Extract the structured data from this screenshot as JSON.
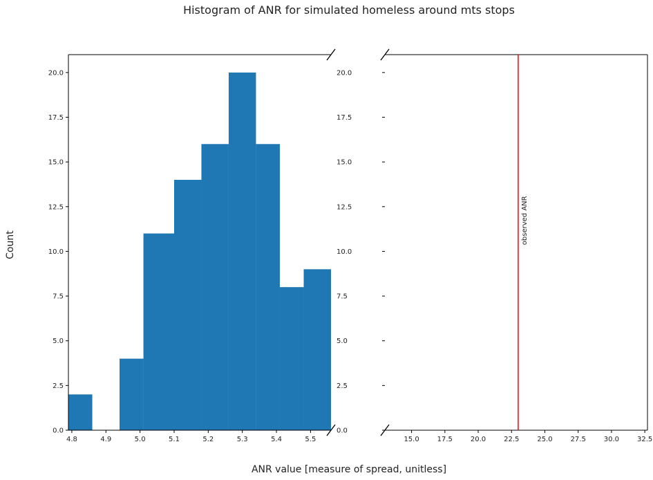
{
  "chart_data": {
    "type": "bar",
    "title": "Histogram of ANR for simulated homeless around mts stops",
    "xlabel": "ANR value [measure of spread, unitless]",
    "ylabel": "Count",
    "bar_color": "#1f77b4",
    "line_color": "#ff0000",
    "grid": false,
    "broken_x_axis": true,
    "left_panel": {
      "xlim": [
        4.79,
        5.56
      ],
      "ylim": [
        0,
        21
      ],
      "xticks": [
        "4.8",
        "4.9",
        "5.0",
        "5.1",
        "5.2",
        "5.3",
        "5.4",
        "5.5"
      ],
      "yticks": [
        "0.0",
        "2.5",
        "5.0",
        "7.5",
        "10.0",
        "12.5",
        "15.0",
        "17.5",
        "20.0"
      ],
      "bins": [
        {
          "x0": 4.79,
          "x1": 4.86,
          "count": 2
        },
        {
          "x0": 4.86,
          "x1": 4.94,
          "count": 0
        },
        {
          "x0": 4.94,
          "x1": 5.01,
          "count": 4
        },
        {
          "x0": 5.01,
          "x1": 5.1,
          "count": 11
        },
        {
          "x0": 5.1,
          "x1": 5.18,
          "count": 14
        },
        {
          "x0": 5.18,
          "x1": 5.26,
          "count": 16
        },
        {
          "x0": 5.26,
          "x1": 5.34,
          "count": 20
        },
        {
          "x0": 5.34,
          "x1": 5.41,
          "count": 16
        },
        {
          "x0": 5.41,
          "x1": 5.48,
          "count": 8
        },
        {
          "x0": 5.48,
          "x1": 5.56,
          "count": 9
        }
      ]
    },
    "right_panel": {
      "xlim": [
        13.0,
        32.7
      ],
      "ylim": [
        0,
        21
      ],
      "xticks": [
        "15.0",
        "17.5",
        "20.0",
        "22.5",
        "25.0",
        "27.5",
        "30.0",
        "32.5"
      ],
      "yticks": [
        "0.0",
        "2.5",
        "5.0",
        "7.5",
        "10.0",
        "12.5",
        "15.0",
        "17.5",
        "20.0"
      ],
      "observed_anr": 23.0,
      "annotation": "observed ANR"
    }
  }
}
